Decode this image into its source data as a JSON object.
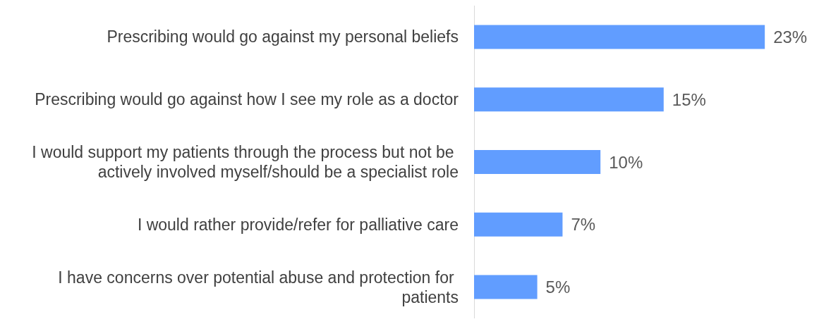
{
  "chart_data": {
    "type": "bar",
    "orientation": "horizontal",
    "categories": [
      "Prescribing would go against my personal beliefs",
      "Prescribing would go against how I see my role as a doctor",
      "I would support my patients through the process but not be actively involved myself/should be a specialist role",
      "I would rather provide/refer for palliative care",
      "I have concerns over potential abuse and protection for patients"
    ],
    "values": [
      23,
      15,
      10,
      7,
      5
    ],
    "value_labels": [
      "23%",
      "15%",
      "10%",
      "7%",
      "5%"
    ],
    "color": "#619dff",
    "tick_labels": "y"
  }
}
